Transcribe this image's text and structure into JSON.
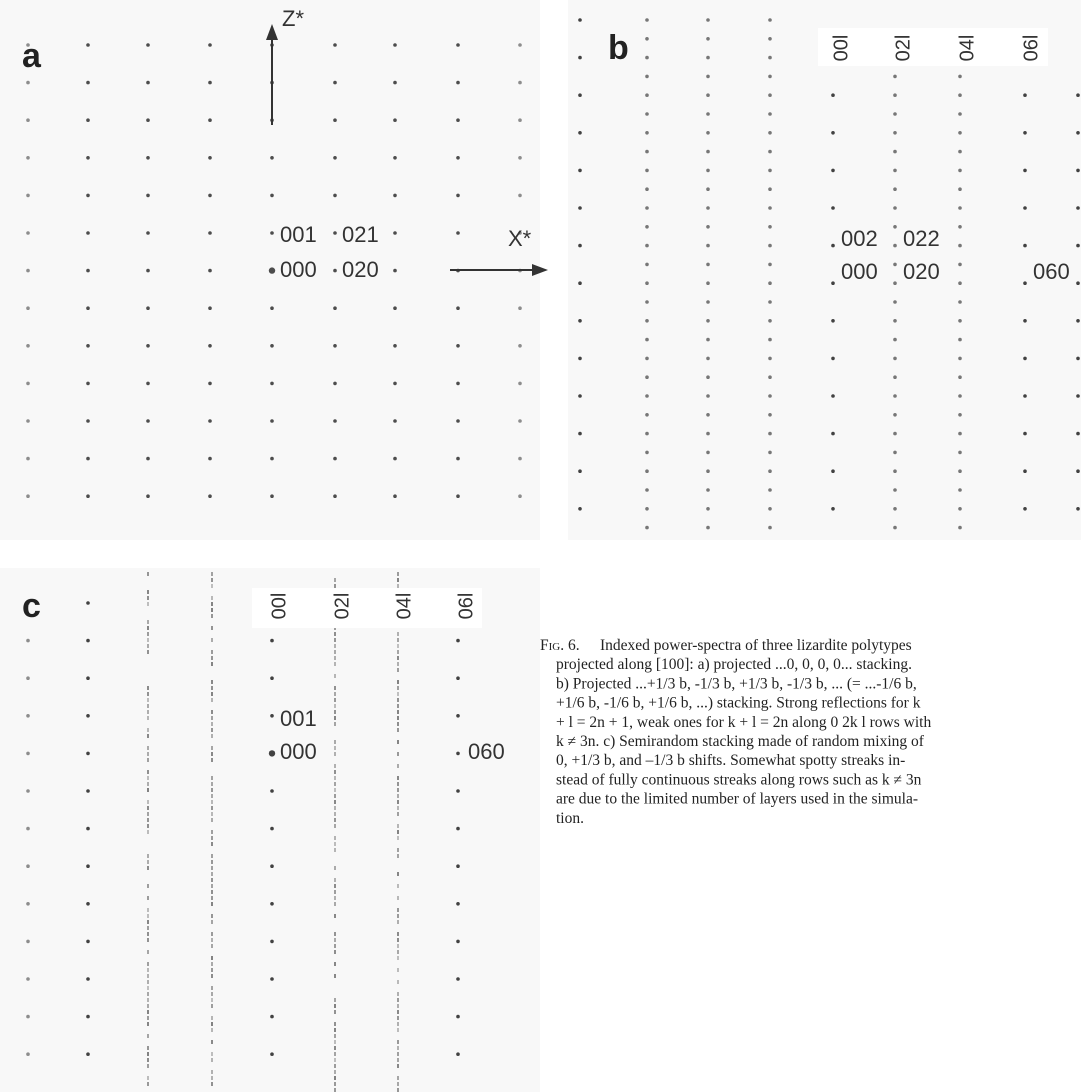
{
  "panels": [
    {
      "letter": "a",
      "axis_z": "Z*",
      "axis_x": "X*",
      "spots": [
        "001",
        "021",
        "000",
        "020"
      ]
    },
    {
      "letter": "b",
      "rows": [
        "00l",
        "02l",
        "04l",
        "06l"
      ],
      "spots": [
        "002",
        "022",
        "000",
        "020",
        "060"
      ]
    },
    {
      "letter": "c",
      "rows": [
        "00l",
        "02l",
        "04l",
        "06l"
      ],
      "spots": [
        "001",
        "000",
        "060"
      ]
    }
  ],
  "caption": {
    "label": "Fig. 6.",
    "lines": [
      "Indexed power-spectra of three lizardite polytypes",
      "projected along [100]: a) projected ...0, 0, 0, 0... stacking.",
      "b) Projected ...+1/3 b, -1/3 b, +1/3 b, -1/3 b, ... (= ...-1/6 b,",
      "+1/6 b, -1/6 b, +1/6 b, ...) stacking. Strong reflections for k",
      "+ l = 2n + 1, weak ones for k + l = 2n along 0 2k l rows with",
      "k ≠ 3n. c) Semirandom stacking made of random mixing of",
      "0, +1/3 b, and –1/3 b shifts. Somewhat spotty streaks in-",
      "stead of fully continuous streaks along rows such as k ≠ 3n",
      "are due to the limited number of layers used in the simula-",
      "tion."
    ]
  }
}
